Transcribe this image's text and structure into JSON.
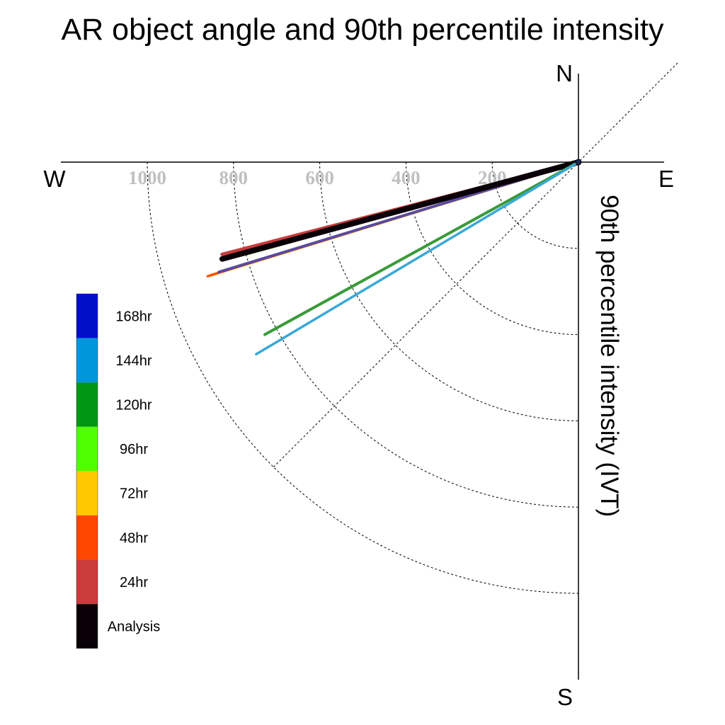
{
  "chart_data": {
    "type": "polar-vector",
    "title": "AR object angle and 90th percentile intensity",
    "ylabel": "90th percentile intensity (IVT)",
    "directions": {
      "north": "N",
      "south": "S",
      "east": "E",
      "west": "W"
    },
    "radial_ticks": [
      200,
      400,
      600,
      800,
      1000
    ],
    "radial_range": [
      0,
      1200
    ],
    "grid": true,
    "legend": {
      "placement": "left",
      "entries": [
        {
          "label": "168hr",
          "color": "#0010c8"
        },
        {
          "label": "144hr",
          "color": "#0096dc"
        },
        {
          "label": "120hr",
          "color": "#009614"
        },
        {
          "label": "96hr",
          "color": "#50ff00"
        },
        {
          "label": "72hr",
          "color": "#ffc800"
        },
        {
          "label": "48hr",
          "color": "#ff4600"
        },
        {
          "label": "24hr",
          "color": "#c83c3c"
        },
        {
          "label": "Analysis",
          "color": "#0a0008"
        }
      ]
    },
    "series": [
      {
        "name": "24hr",
        "color": "#c83c3c",
        "direction_deg": 255.5,
        "intensity": 854,
        "width": 4.5
      },
      {
        "name": "72hr",
        "color": "#ffc800",
        "direction_deg": 252.9,
        "intensity": 894,
        "width": 4
      },
      {
        "name": "48hr",
        "color": "#ff4600",
        "direction_deg": 252.9,
        "intensity": 900,
        "width": 3
      },
      {
        "name": "168hr",
        "color": "#5a4aa0",
        "direction_deg": 253.0,
        "intensity": 872,
        "width": 4
      },
      {
        "name": "96hr",
        "color": "#50ff00",
        "direction_deg": 254.5,
        "intensity": 798,
        "width": 3.5
      },
      {
        "name": "Analysis",
        "color": "#0a0008",
        "direction_deg": 254.8,
        "intensity": 856,
        "width": 8
      },
      {
        "name": "120hr",
        "color": "#3a9a3a",
        "direction_deg": 241.2,
        "intensity": 830,
        "width": 4
      },
      {
        "name": "144hr",
        "color": "#3aa8d8",
        "direction_deg": 239.2,
        "intensity": 870,
        "width": 3.5
      }
    ]
  }
}
